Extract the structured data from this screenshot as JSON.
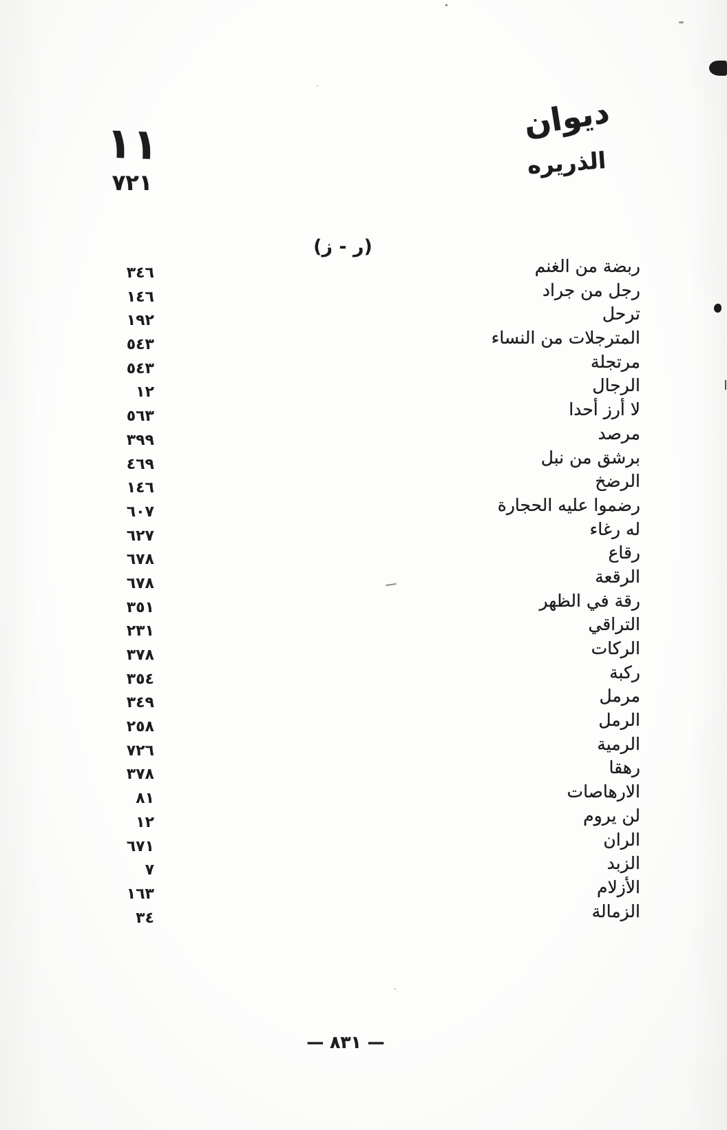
{
  "colors": {
    "ink": "#1c1c1c",
    "paper": "#fdfdfc"
  },
  "header": {
    "title_line1": "ديوان",
    "title_line2": "الذريره",
    "left_mark": "١١",
    "left_page": "٧٢١"
  },
  "section_heading": "(ر - ز)",
  "entries": [
    {
      "title": "ربضة من الغنم",
      "page": "٣٤٦"
    },
    {
      "title": "رجل من جراد",
      "page": "١٤٦"
    },
    {
      "title": "ترحل",
      "page": "١٩٢"
    },
    {
      "title": "المترجلات من النساء",
      "page": "٥٤٣"
    },
    {
      "title": "مرتجلة",
      "page": "٥٤٣"
    },
    {
      "title": "الرجال",
      "page": "١٢"
    },
    {
      "title": "لا أرز أحدا",
      "page": "٥٦٣"
    },
    {
      "title": "مرصد",
      "page": "٣٩٩"
    },
    {
      "title": "برشق من نبل",
      "page": "٤٦٩"
    },
    {
      "title": "الرضخ",
      "page": "١٤٦"
    },
    {
      "title": "رضموا عليه الحجارة",
      "page": "٦٠٧"
    },
    {
      "title": "له رغاء",
      "page": "٦٢٧"
    },
    {
      "title": "رقاع",
      "page": "٦٧٨"
    },
    {
      "title": "الرقعة",
      "page": "٦٧٨"
    },
    {
      "title": "رقة في الظهر",
      "page": "٣٥١"
    },
    {
      "title": "التراقي",
      "page": "٢٣١"
    },
    {
      "title": "الركات",
      "page": "٣٧٨"
    },
    {
      "title": "ركبة",
      "page": "٣٥٤"
    },
    {
      "title": "مرمل",
      "page": "٣٤٩"
    },
    {
      "title": "الرمل",
      "page": "٢٥٨"
    },
    {
      "title": "الرمية",
      "page": "٧٢٦"
    },
    {
      "title": "رهقا",
      "page": "٣٧٨"
    },
    {
      "title": "الارهاصات",
      "page": "٨١"
    },
    {
      "title": "لن يروم",
      "page": "١٢"
    },
    {
      "title": "الران",
      "page": "٦٧١"
    },
    {
      "title": "الزبد",
      "page": "٧"
    },
    {
      "title": "الأزلام",
      "page": "١٦٣"
    },
    {
      "title": "الزمالة",
      "page": "٣٤"
    }
  ],
  "footer_page_number": "— ٨٣١ —"
}
